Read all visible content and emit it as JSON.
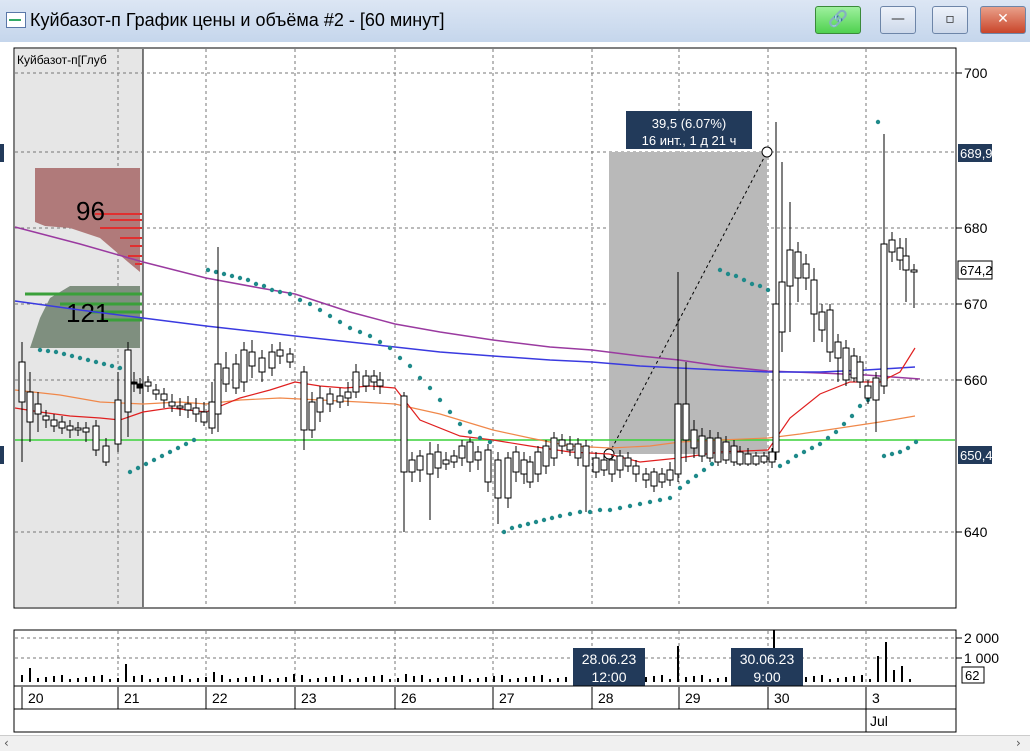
{
  "window": {
    "title": "Куйбазот-п График цены и объёма #2 - [60 минут]",
    "buttons": {
      "link": "🔗",
      "minimize": "—",
      "maximize": "▫",
      "close": "✕"
    }
  },
  "depth_panel": {
    "label": "Куйбазот-п[Глуб",
    "level_top": "96",
    "level_bottom": "121"
  },
  "price_axis": {
    "ticks": [
      "700",
      "680",
      "670",
      "660",
      "650,4",
      "640"
    ],
    "tick_values": [
      700,
      680,
      670,
      660,
      650,
      640
    ],
    "current_price_label": "674,2",
    "marker_high": "689,9",
    "marker_low": "650,4"
  },
  "measurement_tooltip": {
    "line1": "39,5 (6.07%)",
    "line2": "16 инт., 1 д 21 ч"
  },
  "volume_axis": {
    "ticks": [
      "2 000",
      "1 000"
    ],
    "tick_values": [
      2000,
      1000
    ],
    "current_label": "62"
  },
  "time_axis": {
    "days": [
      "20",
      "21",
      "22",
      "23",
      "26",
      "27",
      "28",
      "29",
      "30",
      "3"
    ],
    "month_label": "Jul",
    "cursor_labels": [
      {
        "date": "28.06.23",
        "time": "12:00"
      },
      {
        "date": "30.06.23",
        "time": "9:00"
      }
    ]
  },
  "colors": {
    "up_candle": "#ffffff",
    "down_candle": "#000000",
    "ma_fast": "#e02020",
    "ma_slow": "#f0884a",
    "ma_blue": "#3a3ae0",
    "ma_purple": "#9a3aa0",
    "horizontal_line": "#3ad23a",
    "sar_dots": "#1f8a8a",
    "axis_label_bg": "#223a5a"
  }
}
